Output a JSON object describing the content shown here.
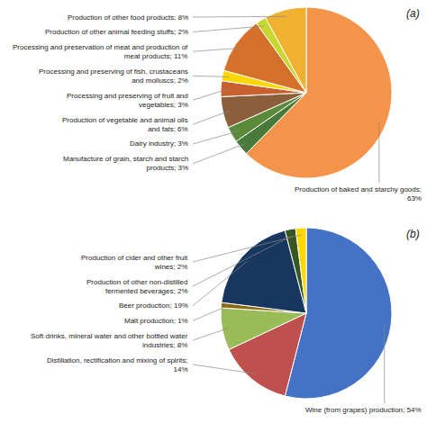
{
  "chart_data": [
    {
      "type": "pie",
      "values": [
        63,
        3,
        3,
        6,
        3,
        2,
        11,
        2,
        8
      ],
      "value_labels": [
        "Production of baked and starchy goods;\n63%",
        "Manufacture of grain, starch and starch\nproducts; 3%",
        "Dairy industry; 3%",
        "Production of vegetable and animal oils\nand fats; 6%",
        "Processing and preserving of fruit and\nvegetables; 3%",
        "Processing and preserving of fish, crustaceans\nand molluscs; 2%",
        "Processing and preservation of meat and production of\nmeat products; 11%",
        "Production of other animal feeding stuffs; 2%",
        "Production of other food products; 8%"
      ],
      "colors": [
        "#F4944A",
        "#4A7A3A",
        "#5A8A3A",
        "#8B5E3C",
        "#C86030",
        "#FFD700",
        "#D4702A",
        "#C8D830",
        "#F0B030"
      ],
      "data_labels": true,
      "annotations": [
        "(a)"
      ]
    },
    {
      "type": "pie",
      "values": [
        54,
        14,
        8,
        1,
        19,
        2,
        2
      ],
      "value_labels": [
        "Wine (from grapes) production; 54%",
        "Distillation, rectification and mixing of spirits;\n14%",
        "Soft drinks, mineral water and other bottled water\nindustries; 8%",
        "Malt production; 1%",
        "Beer production; 19%",
        "Production of other non-distilled\nfermented beverages; 2%",
        "Production of cider and other fruit\nwines; 2%"
      ],
      "colors": [
        "#4472C4",
        "#C0504D",
        "#9BBB59",
        "#8B6914",
        "#17375E",
        "#375623",
        "#FFD700"
      ],
      "data_labels": true,
      "annotations": [
        "(b)"
      ]
    }
  ]
}
